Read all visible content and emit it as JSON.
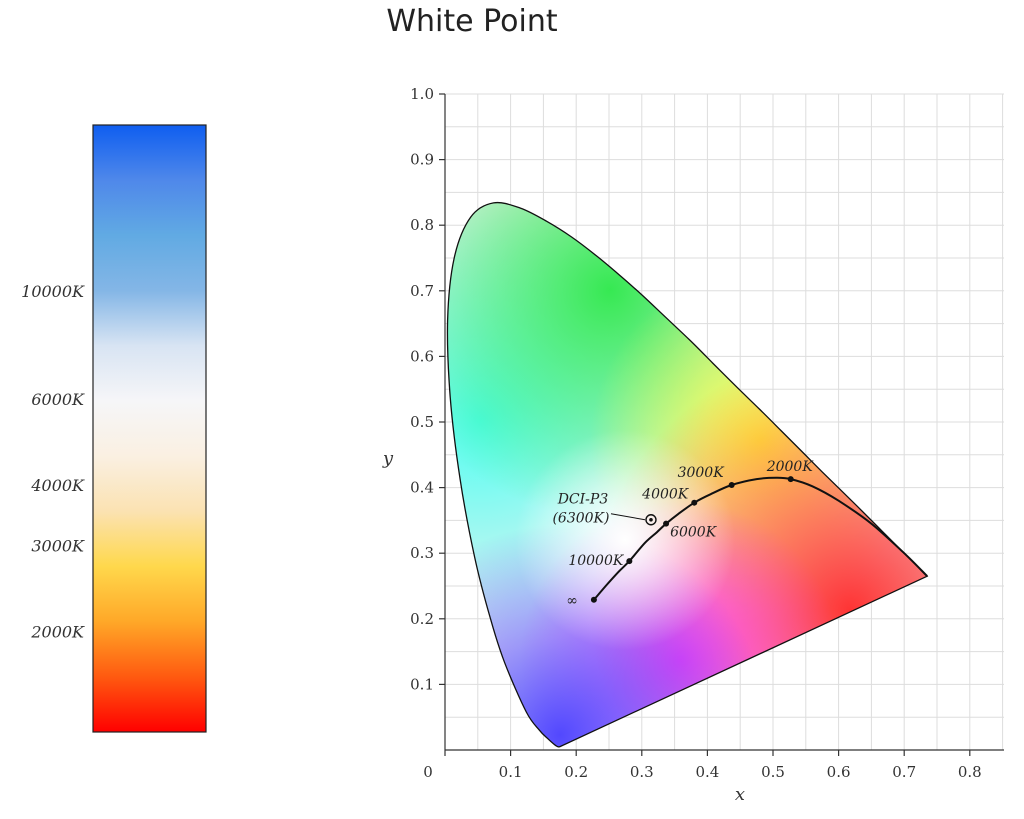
{
  "title": "White Point",
  "colors": {
    "temperature_bar": [
      "#ff0000",
      "#ff5a10",
      "#ffa828",
      "#ffd84c",
      "#fbe2b2",
      "#faf0e2",
      "#f6f6f8",
      "#d8e4f3",
      "#84b6e6",
      "#61aae3",
      "#4f88ea",
      "#0f5ef0"
    ],
    "locus": "#000000",
    "grid": "#dddddd"
  },
  "temperature_bar": {
    "labels": [
      {
        "text": "10000K",
        "value": 10000
      },
      {
        "text": "6000K",
        "value": 6000
      },
      {
        "text": "4000K",
        "value": 4000
      },
      {
        "text": "3000K",
        "value": 3000
      },
      {
        "text": "2000K",
        "value": 2000
      }
    ]
  },
  "chart_data": {
    "type": "scatter",
    "title": "White Point",
    "xlabel": "x",
    "ylabel": "y",
    "xlim": [
      0,
      0.85
    ],
    "ylim": [
      0,
      1.0
    ],
    "grid": true,
    "x_ticks": [
      {
        "label": "0",
        "value": 0
      },
      {
        "label": "0.1",
        "value": 0.1
      },
      {
        "label": "0.2",
        "value": 0.2
      },
      {
        "label": "0.3",
        "value": 0.3
      },
      {
        "label": "0.4",
        "value": 0.4
      },
      {
        "label": "0.5",
        "value": 0.5
      },
      {
        "label": "0.6",
        "value": 0.6
      },
      {
        "label": "0.7",
        "value": 0.7
      },
      {
        "label": "0.8",
        "value": 0.8
      }
    ],
    "y_ticks": [
      {
        "label": "0.1",
        "value": 0.1
      },
      {
        "label": "0.2",
        "value": 0.2
      },
      {
        "label": "0.3",
        "value": 0.3
      },
      {
        "label": "0.4",
        "value": 0.4
      },
      {
        "label": "0.5",
        "value": 0.5
      },
      {
        "label": "0.6",
        "value": 0.6
      },
      {
        "label": "0.7",
        "value": 0.7
      },
      {
        "label": "0.8",
        "value": 0.8
      },
      {
        "label": "0.9",
        "value": 0.9
      },
      {
        "label": "1.0",
        "value": 1.0
      }
    ],
    "spectral_locus": [
      [
        0.175,
        0.005
      ],
      [
        0.172,
        0.005
      ],
      [
        0.166,
        0.009
      ],
      [
        0.156,
        0.018
      ],
      [
        0.144,
        0.03
      ],
      [
        0.124,
        0.058
      ],
      [
        0.091,
        0.133
      ],
      [
        0.069,
        0.201
      ],
      [
        0.045,
        0.295
      ],
      [
        0.023,
        0.413
      ],
      [
        0.008,
        0.538
      ],
      [
        0.004,
        0.655
      ],
      [
        0.014,
        0.75
      ],
      [
        0.039,
        0.812
      ],
      [
        0.074,
        0.834
      ],
      [
        0.115,
        0.826
      ],
      [
        0.155,
        0.806
      ],
      [
        0.193,
        0.782
      ],
      [
        0.23,
        0.754
      ],
      [
        0.266,
        0.724
      ],
      [
        0.302,
        0.692
      ],
      [
        0.337,
        0.659
      ],
      [
        0.373,
        0.625
      ],
      [
        0.408,
        0.59
      ],
      [
        0.444,
        0.554
      ],
      [
        0.479,
        0.52
      ],
      [
        0.512,
        0.487
      ],
      [
        0.544,
        0.455
      ],
      [
        0.575,
        0.424
      ],
      [
        0.627,
        0.373
      ],
      [
        0.666,
        0.334
      ],
      [
        0.7,
        0.3
      ],
      [
        0.719,
        0.281
      ],
      [
        0.735,
        0.265
      ]
    ],
    "planckian_locus": [
      [
        0.227,
        0.229
      ],
      [
        0.245,
        0.25
      ],
      [
        0.265,
        0.272
      ],
      [
        0.281,
        0.288
      ],
      [
        0.305,
        0.316
      ],
      [
        0.323,
        0.332
      ],
      [
        0.337,
        0.345
      ],
      [
        0.356,
        0.36
      ],
      [
        0.38,
        0.377
      ],
      [
        0.405,
        0.39
      ],
      [
        0.437,
        0.404
      ],
      [
        0.475,
        0.413
      ],
      [
        0.505,
        0.415
      ],
      [
        0.527,
        0.413
      ],
      [
        0.56,
        0.402
      ],
      [
        0.6,
        0.38
      ],
      [
        0.65,
        0.345
      ],
      [
        0.7,
        0.3
      ],
      [
        0.735,
        0.265
      ]
    ],
    "points": [
      {
        "label": "∞",
        "x": 0.227,
        "y": 0.229
      },
      {
        "label": "10000K",
        "x": 0.281,
        "y": 0.288
      },
      {
        "label": "6000K",
        "x": 0.337,
        "y": 0.345
      },
      {
        "label": "4000K",
        "x": 0.38,
        "y": 0.377
      },
      {
        "label": "3000K",
        "x": 0.437,
        "y": 0.404
      },
      {
        "label": "2000K",
        "x": 0.527,
        "y": 0.413
      }
    ],
    "annotations": [
      {
        "label_line1": "DCI-P3",
        "label_line2": "(6300K)",
        "x": 0.314,
        "y": 0.351
      }
    ]
  }
}
